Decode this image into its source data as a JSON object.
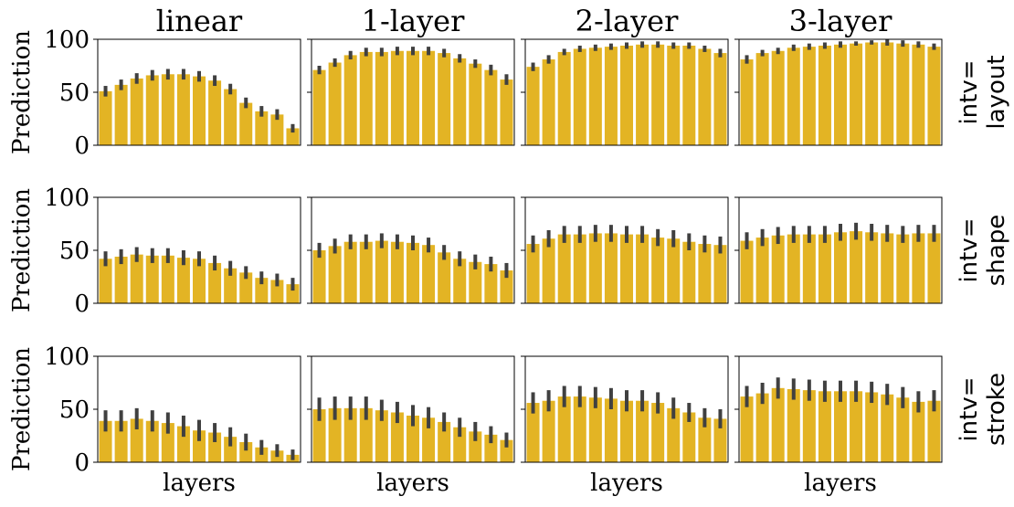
{
  "bar_color": "#e3b424",
  "err_color": "#404040",
  "chart_data": {
    "type": "bar",
    "column_titles": [
      "linear",
      "1-layer",
      "2-layer",
      "3-layer"
    ],
    "row_labels": [
      {
        "line1": "intv=",
        "line2": "layout"
      },
      {
        "line1": "intv=",
        "line2": "shape"
      },
      {
        "line1": "intv=",
        "line2": "stroke"
      }
    ],
    "ylabel": "Prediction",
    "xlabel": "layers",
    "ylim": [
      0,
      100
    ],
    "yticks": [
      "0",
      "50",
      "100"
    ],
    "panels": [
      [
        {
          "values": [
            51,
            57,
            63,
            66,
            67,
            67,
            65,
            61,
            53,
            40,
            32,
            29,
            16
          ],
          "errors": [
            5,
            5,
            5,
            5,
            5,
            5,
            5,
            5,
            5,
            5,
            5,
            5,
            4
          ]
        },
        {
          "values": [
            71,
            78,
            85,
            88,
            88,
            89,
            89,
            89,
            87,
            82,
            77,
            71,
            62
          ],
          "errors": [
            4,
            4,
            4,
            4,
            4,
            4,
            4,
            4,
            4,
            4,
            4,
            5,
            5
          ]
        },
        {
          "values": [
            74,
            81,
            88,
            91,
            92,
            93,
            94,
            95,
            95,
            94,
            94,
            91,
            87
          ],
          "errors": [
            4,
            4,
            3,
            3,
            3,
            3,
            3,
            3,
            3,
            3,
            3,
            3,
            4
          ]
        },
        {
          "values": [
            81,
            87,
            89,
            92,
            93,
            94,
            95,
            96,
            97,
            97,
            96,
            95,
            93
          ],
          "errors": [
            4,
            3,
            3,
            3,
            3,
            3,
            3,
            2,
            2,
            3,
            3,
            3,
            3
          ]
        }
      ],
      [
        {
          "values": [
            42,
            44,
            46,
            45,
            45,
            43,
            42,
            38,
            33,
            29,
            24,
            22,
            18
          ],
          "errors": [
            7,
            7,
            7,
            7,
            7,
            7,
            7,
            7,
            7,
            6,
            6,
            6,
            6
          ]
        },
        {
          "values": [
            50,
            54,
            58,
            58,
            59,
            58,
            57,
            55,
            48,
            42,
            39,
            37,
            31
          ],
          "errors": [
            7,
            7,
            7,
            7,
            7,
            7,
            7,
            7,
            7,
            7,
            7,
            7,
            7
          ]
        },
        {
          "values": [
            56,
            61,
            65,
            65,
            66,
            66,
            65,
            65,
            62,
            61,
            58,
            56,
            55
          ],
          "errors": [
            8,
            8,
            8,
            8,
            8,
            8,
            8,
            8,
            8,
            8,
            8,
            8,
            8
          ]
        },
        {
          "values": [
            59,
            62,
            64,
            65,
            65,
            65,
            67,
            68,
            67,
            66,
            65,
            66,
            66
          ],
          "errors": [
            8,
            8,
            8,
            8,
            8,
            8,
            8,
            8,
            8,
            8,
            8,
            8,
            8
          ]
        }
      ],
      [
        {
          "values": [
            39,
            39,
            41,
            39,
            37,
            34,
            30,
            28,
            24,
            19,
            14,
            11,
            7
          ],
          "errors": [
            10,
            10,
            10,
            10,
            10,
            10,
            10,
            9,
            9,
            8,
            7,
            6,
            5
          ]
        },
        {
          "values": [
            50,
            51,
            51,
            51,
            49,
            47,
            44,
            42,
            38,
            33,
            29,
            26,
            21
          ],
          "errors": [
            11,
            11,
            11,
            11,
            10,
            10,
            10,
            10,
            9,
            9,
            9,
            8,
            7
          ]
        },
        {
          "values": [
            56,
            58,
            62,
            62,
            61,
            60,
            58,
            58,
            56,
            51,
            47,
            42,
            41
          ],
          "errors": [
            10,
            10,
            10,
            10,
            10,
            10,
            10,
            10,
            10,
            10,
            9,
            9,
            9
          ]
        },
        {
          "values": [
            62,
            65,
            70,
            69,
            68,
            67,
            67,
            67,
            66,
            64,
            61,
            57,
            58
          ],
          "errors": [
            10,
            10,
            10,
            10,
            10,
            10,
            10,
            10,
            10,
            10,
            10,
            10,
            10
          ]
        }
      ]
    ]
  }
}
